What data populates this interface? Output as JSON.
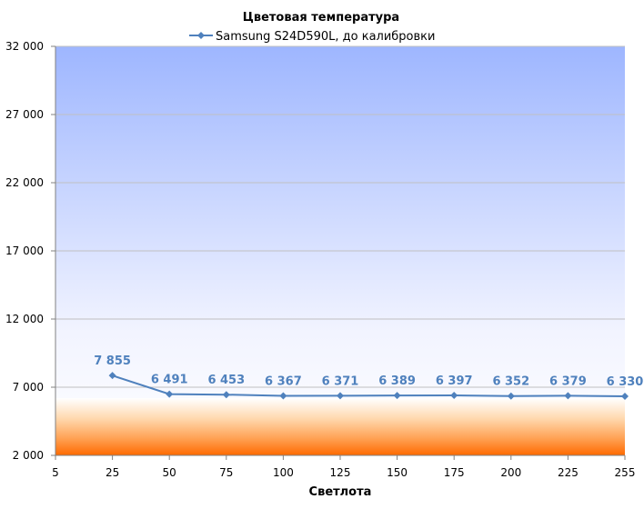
{
  "chart_data": {
    "type": "line",
    "title": "Цветовая температура",
    "xlabel": "Светлота",
    "ylabel": "",
    "x_ticks": [
      5,
      25,
      50,
      75,
      100,
      125,
      150,
      175,
      200,
      225,
      255
    ],
    "x_tick_labels": [
      "5",
      "25",
      "50",
      "75",
      "100",
      "125",
      "150",
      "175",
      "200",
      "225",
      "255"
    ],
    "y_ticks": [
      2000,
      7000,
      12000,
      17000,
      22000,
      27000,
      32000
    ],
    "y_tick_labels": [
      "2 000",
      "7 000",
      "12 000",
      "17 000",
      "22 000",
      "27 000",
      "32 000"
    ],
    "ylim": [
      2000,
      32000
    ],
    "grid": true,
    "legend_position": "top",
    "series": [
      {
        "name": "Samsung S24D590L, до калибровки",
        "color": "#4f81bd",
        "x": [
          25,
          50,
          75,
          100,
          125,
          150,
          175,
          200,
          225,
          255
        ],
        "values": [
          7855,
          6491,
          6453,
          6367,
          6371,
          6389,
          6397,
          6352,
          6379,
          6330
        ],
        "data_labels": [
          "7 855",
          "6 491",
          "6 453",
          "6 367",
          "6 371",
          "6 389",
          "6 397",
          "6 352",
          "6 379",
          "6 330"
        ]
      }
    ],
    "colors": {
      "plot_top": "#9eb6ff",
      "plot_mid": "#f2f4ff",
      "warm_band_top": "#ffffff",
      "warm_band_bottom": "#ff6a00",
      "gridline": "#c0c0c0",
      "axis": "#808080",
      "label_color": "#4f81bd"
    }
  }
}
